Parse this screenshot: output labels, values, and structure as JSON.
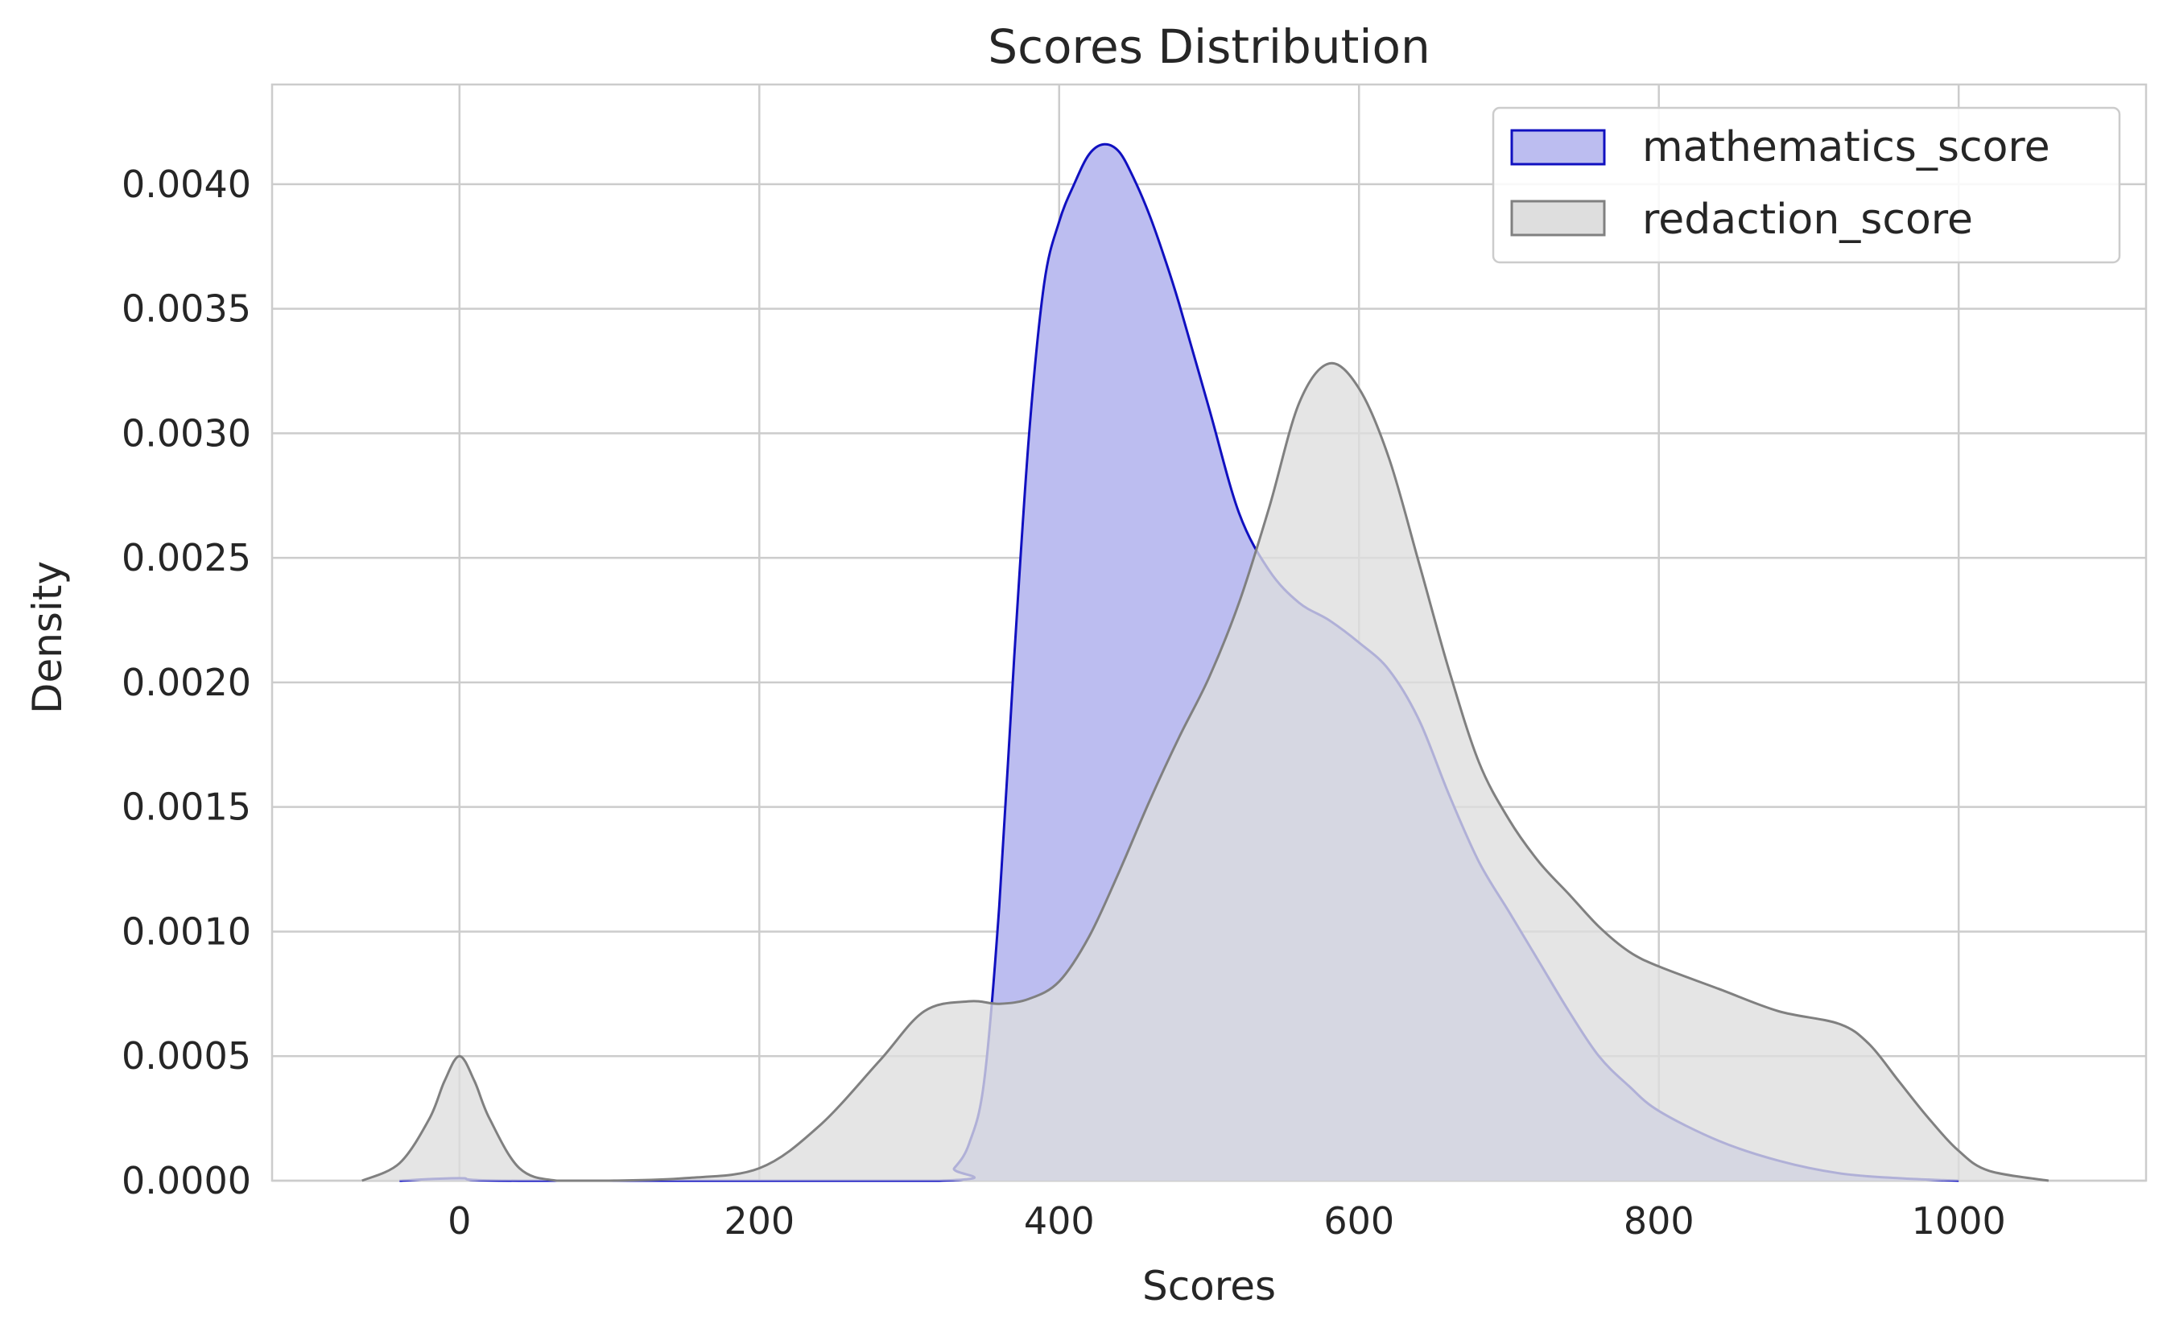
{
  "chart_data": {
    "type": "area",
    "title": "Scores Distribution",
    "xlabel": "Scores",
    "ylabel": "Density",
    "xlim": [
      -125,
      1125
    ],
    "ylim": [
      0,
      0.0044
    ],
    "x_ticks": [
      0,
      200,
      400,
      600,
      800,
      1000
    ],
    "x_tick_labels": [
      "0",
      "200",
      "400",
      "600",
      "800",
      "1000"
    ],
    "y_ticks": [
      0,
      0.0005,
      0.001,
      0.0015,
      0.002,
      0.0025,
      0.003,
      0.0035,
      0.004
    ],
    "y_tick_labels": [
      "0.0000",
      "0.0005",
      "0.0010",
      "0.0015",
      "0.0020",
      "0.0025",
      "0.0030",
      "0.0035",
      "0.0040"
    ],
    "grid": true,
    "legend_position": "top-right",
    "series": [
      {
        "name": "mathematics_score",
        "fill": "#bcbdf0",
        "stroke": "#1010c0",
        "x": [
          -40,
          0,
          40,
          320,
          330,
          340,
          350,
          360,
          370,
          380,
          390,
          400,
          410,
          420,
          430,
          440,
          450,
          460,
          470,
          480,
          500,
          520,
          540,
          560,
          580,
          600,
          620,
          640,
          660,
          680,
          700,
          720,
          740,
          760,
          780,
          800,
          840,
          880,
          920,
          960,
          1000
        ],
        "y": [
          0,
          1e-05,
          0,
          0,
          5e-05,
          0.00015,
          0.0004,
          0.0011,
          0.0021,
          0.003,
          0.0036,
          0.00385,
          0.004,
          0.00412,
          0.00416,
          0.00413,
          0.00402,
          0.00388,
          0.00371,
          0.00352,
          0.0031,
          0.00268,
          0.00245,
          0.00232,
          0.00225,
          0.00216,
          0.00205,
          0.00185,
          0.00155,
          0.00128,
          0.00108,
          0.00088,
          0.00068,
          0.0005,
          0.00038,
          0.00028,
          0.00016,
          8e-05,
          3e-05,
          1e-05,
          0
        ]
      },
      {
        "name": "redaction_score",
        "fill": "#dedede",
        "stroke": "#808080",
        "x": [
          -65,
          -40,
          -20,
          -10,
          0,
          10,
          20,
          40,
          65,
          100,
          150,
          200,
          240,
          280,
          310,
          340,
          360,
          380,
          400,
          420,
          440,
          460,
          480,
          500,
          520,
          540,
          560,
          580,
          600,
          620,
          640,
          660,
          680,
          700,
          720,
          740,
          760,
          780,
          800,
          840,
          880,
          920,
          940,
          960,
          980,
          1000,
          1020,
          1060
        ],
        "y": [
          0,
          7e-05,
          0.00025,
          0.0004,
          0.0005,
          0.0004,
          0.00025,
          5e-05,
          0,
          0,
          1e-05,
          5e-05,
          0.00022,
          0.00048,
          0.00068,
          0.00072,
          0.00071,
          0.00073,
          0.0008,
          0.00098,
          0.00124,
          0.00152,
          0.00178,
          0.00202,
          0.00232,
          0.0027,
          0.00312,
          0.00328,
          0.00318,
          0.0029,
          0.00248,
          0.00205,
          0.00168,
          0.00145,
          0.00128,
          0.00115,
          0.00102,
          0.00092,
          0.00086,
          0.00077,
          0.00068,
          0.00063,
          0.00055,
          0.0004,
          0.00025,
          0.00012,
          4e-05,
          0
        ]
      }
    ]
  }
}
